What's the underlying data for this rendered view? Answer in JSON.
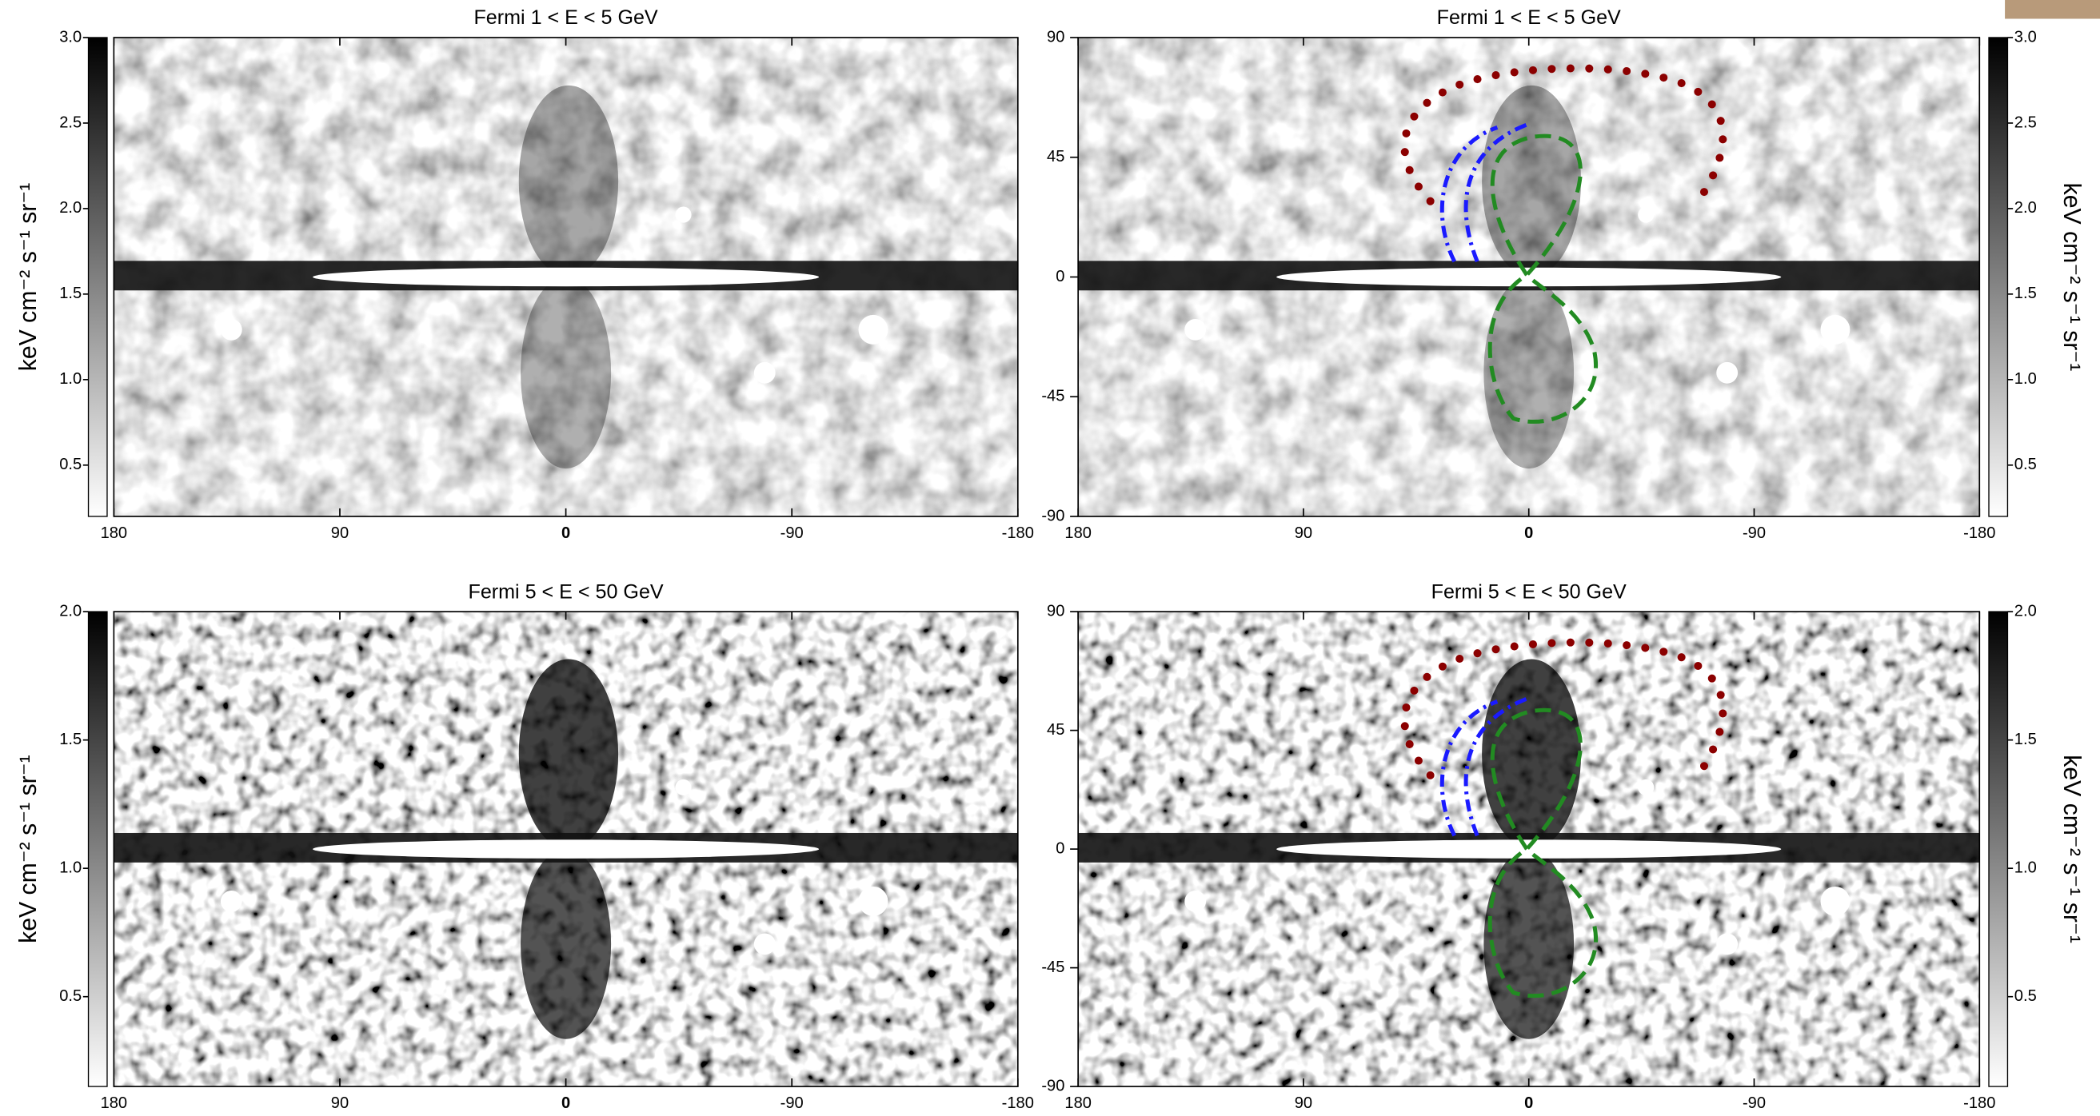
{
  "chart_data": [
    {
      "type": "skymap",
      "title": "Fermi 1 < E < 5 GeV",
      "xlim": [
        180,
        -180
      ],
      "xticks": [
        180,
        90,
        0,
        -90,
        -180
      ],
      "clim": [
        0.2,
        3.0
      ],
      "cticks": [
        0.5,
        {
          "value": 1,
          "label": "1.0"
        },
        1.5,
        {
          "value": 2,
          "label": "2.0"
        },
        2.5,
        {
          "value": 3,
          "label": "3.0"
        }
      ],
      "colorbar_label": "keV cm⁻² s⁻¹ sr⁻¹"
    },
    {
      "type": "skymap",
      "title": "Fermi 1 < E < 5 GeV",
      "xlim": [
        180,
        -180
      ],
      "xticks": [
        180,
        90,
        0,
        -90,
        -180
      ],
      "ylim": [
        -90,
        90
      ],
      "yticks": [
        -90,
        -45,
        0,
        45,
        90
      ],
      "clim": [
        0.2,
        3.0
      ],
      "cticks": [
        0.5,
        {
          "value": 1,
          "label": "1.0"
        },
        1.5,
        {
          "value": 2,
          "label": "2.0"
        },
        2.5,
        {
          "value": 3,
          "label": "3.0"
        }
      ],
      "colorbar_label": "keV cm⁻² s⁻¹ sr⁻¹"
    },
    {
      "type": "skymap",
      "title": "Fermi 5 < E < 50 GeV",
      "xlim": [
        180,
        -180
      ],
      "xticks": [
        180,
        90,
        0,
        -90,
        -180
      ],
      "clim": [
        0.15,
        2.0
      ],
      "cticks": [
        0.5,
        {
          "value": 1,
          "label": "1.0"
        },
        1.5,
        {
          "value": 2,
          "label": "2.0"
        }
      ],
      "colorbar_label": "keV cm⁻² s⁻¹ sr⁻¹"
    },
    {
      "type": "skymap",
      "title": "Fermi 5 < E < 50 GeV",
      "xlim": [
        180,
        -180
      ],
      "xticks": [
        180,
        90,
        0,
        -90,
        -180
      ],
      "ylim": [
        -90,
        90
      ],
      "yticks": [
        -90,
        -45,
        0,
        45,
        90
      ],
      "clim": [
        0.15,
        2.0
      ],
      "cticks": [
        0.5,
        {
          "value": 1,
          "label": "1.0"
        },
        1.5,
        {
          "value": 2,
          "label": "2.0"
        }
      ],
      "colorbar_label": "keV cm⁻² s⁻¹ sr⁻¹"
    }
  ]
}
